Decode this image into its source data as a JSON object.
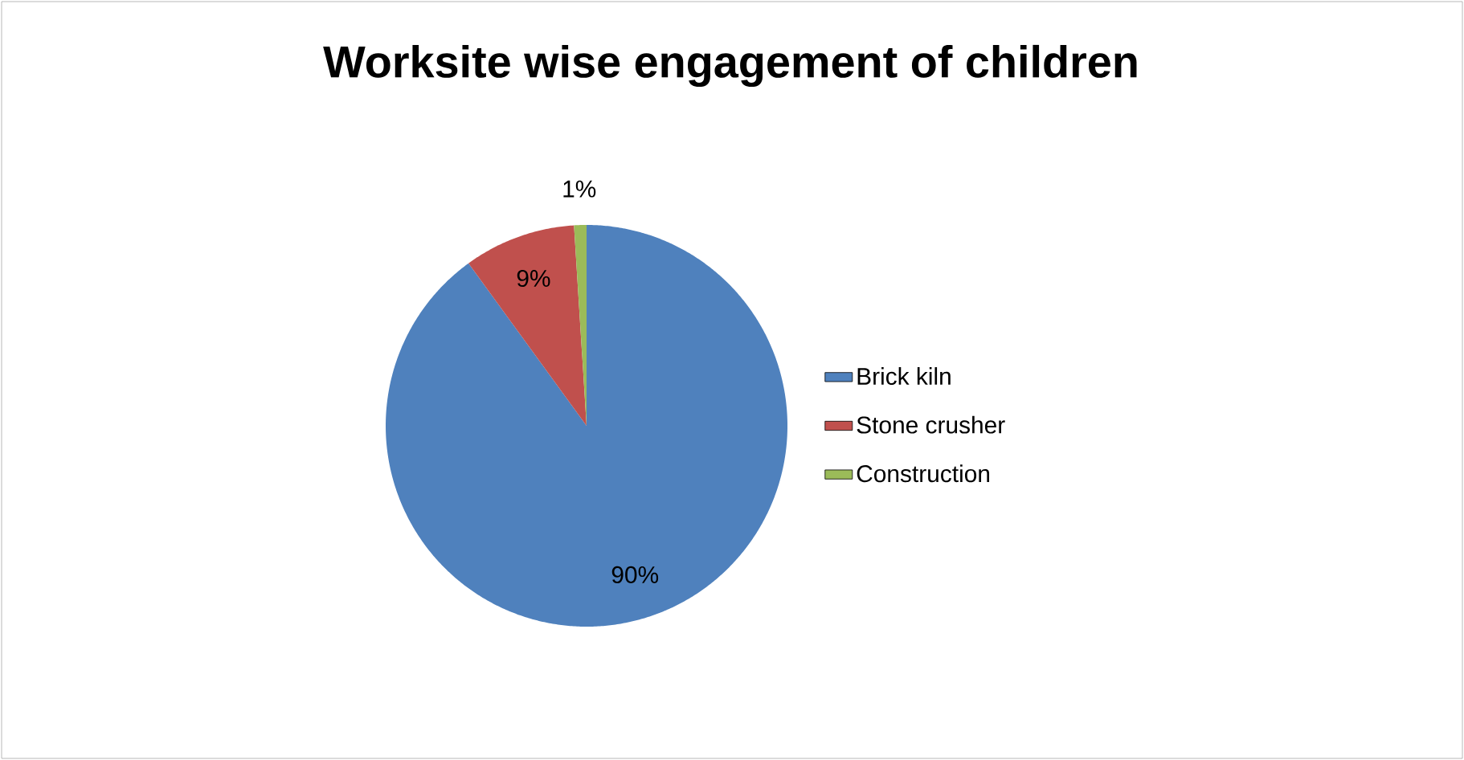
{
  "chart_data": {
    "type": "pie",
    "title": "Worksite wise engagement of children",
    "categories": [
      "Brick kiln",
      "Stone crusher",
      "Construction"
    ],
    "values": [
      90,
      9,
      1
    ],
    "colors": [
      "#4f81bd",
      "#c0504d",
      "#9bbb59"
    ],
    "value_labels": [
      "90%",
      "9%",
      "1%"
    ],
    "legend": "right"
  }
}
